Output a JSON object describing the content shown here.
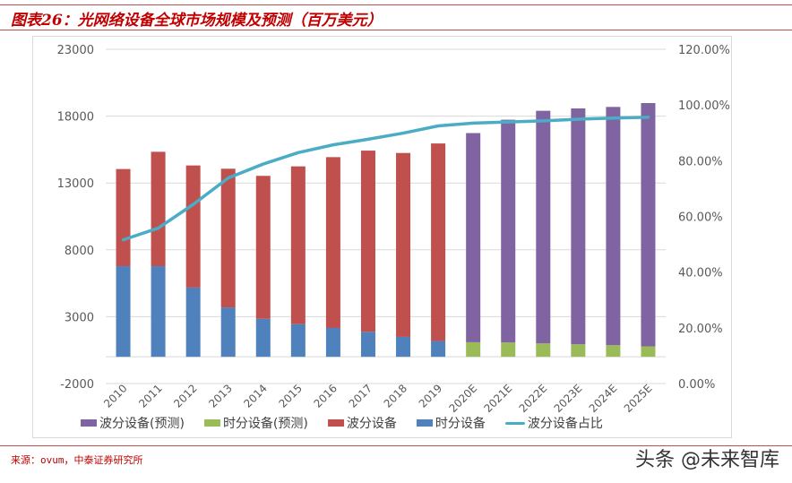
{
  "title": "图表26：光网络设备全球市场规模及预测（百万美元）",
  "source": "来源：ovum，中泰证券研究所",
  "watermark": "头条 @未来智库",
  "chart_data": {
    "type": "bar",
    "stacked": true,
    "categories": [
      "2010",
      "2011",
      "2012",
      "2013",
      "2014",
      "2015",
      "2016",
      "2017",
      "2018",
      "2019",
      "2020E",
      "2021E",
      "2022E",
      "2023E",
      "2024E",
      "2025E"
    ],
    "y_left": {
      "min": -2000,
      "max": 23000,
      "ticks": [
        "23000",
        "18000",
        "13000",
        "8000",
        "3000",
        "-2000"
      ],
      "tick_values": [
        23000,
        18000,
        13000,
        8000,
        3000,
        -2000
      ]
    },
    "y_right": {
      "min": 0,
      "max": 1.2,
      "ticks": [
        "120.00%",
        "100.00%",
        "80.00%",
        "60.00%",
        "40.00%",
        "20.00%",
        "0.00%"
      ],
      "tick_values": [
        1.2,
        1.0,
        0.8,
        0.6,
        0.4,
        0.2,
        0
      ]
    },
    "grid": true,
    "legend_position": "bottom",
    "series": [
      {
        "name": "波分设备(预测)",
        "type": "bar",
        "color": "#8064a2",
        "axis": "left",
        "values": [
          null,
          null,
          null,
          null,
          null,
          null,
          null,
          null,
          null,
          null,
          15644,
          16666,
          17400,
          17645,
          17822,
          18200
        ]
      },
      {
        "name": "时分设备(预测)",
        "type": "bar",
        "color": "#9bbb59",
        "axis": "left",
        "values": [
          null,
          null,
          null,
          null,
          null,
          null,
          null,
          null,
          null,
          null,
          1089,
          1067,
          1000,
          933,
          867,
          778
        ]
      },
      {
        "name": "波分设备",
        "type": "bar",
        "color": "#c0504d",
        "axis": "left",
        "values": [
          7266,
          8555,
          9133,
          10378,
          10689,
          11800,
          12777,
          13555,
          13755,
          14778,
          null,
          null,
          null,
          null,
          null,
          null
        ]
      },
      {
        "name": "时分设备",
        "type": "bar",
        "color": "#4f81bd",
        "axis": "left",
        "values": [
          6778,
          6778,
          5178,
          3689,
          2844,
          2444,
          2156,
          1867,
          1489,
          1178,
          null,
          null,
          null,
          null,
          null,
          null
        ]
      },
      {
        "name": "波分设备占比",
        "type": "line",
        "color": "#4bacc6",
        "axis": "right",
        "values": [
          0.516,
          0.558,
          0.643,
          0.738,
          0.788,
          0.829,
          0.857,
          0.877,
          0.899,
          0.925,
          0.935,
          0.939,
          0.943,
          0.949,
          0.953,
          0.956
        ]
      }
    ]
  }
}
